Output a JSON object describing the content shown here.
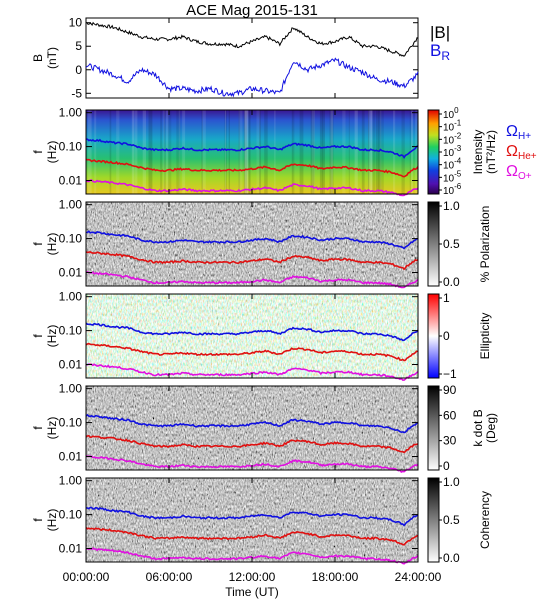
{
  "title": "ACE Mag 2015-131",
  "x_axis": {
    "label": "Time (UT)",
    "ticks": [
      "00:00:00",
      "06:00:00",
      "12:00:00",
      "18:00:00",
      "24:00:00"
    ],
    "range_hours": [
      0,
      24
    ]
  },
  "legend_top": [
    {
      "label": "|B|",
      "color": "#000000"
    },
    {
      "label": "B",
      "sub": "R",
      "color": "#1010e0"
    }
  ],
  "legend_gyro": [
    {
      "label": "Ω",
      "sub": "H+",
      "color": "#1010e0"
    },
    {
      "label": "Ω",
      "sub": "He+",
      "color": "#e01010"
    },
    {
      "label": "Ω",
      "sub": "O+",
      "color": "#e010e0"
    }
  ],
  "freq_axis": {
    "label_top": "f",
    "label_bottom": "(Hz)",
    "ticks": [
      "1.00",
      "0.10",
      "0.01"
    ]
  },
  "panels": [
    {
      "id": "intensity",
      "colorbar_label": "Intensity",
      "colorbar_sublabel": "(nT²/Hz)",
      "colorbar_ticks": [
        "10^0",
        "10^-1",
        "10^-2",
        "10^-3",
        "10^-4",
        "10^-5",
        "10^-6"
      ],
      "scale": "rainbow"
    },
    {
      "id": "polarization",
      "colorbar_label": "% Polarization",
      "colorbar_sublabel": "",
      "colorbar_ticks": [
        "1.0",
        "0.5",
        "0.0"
      ],
      "scale": "gray"
    },
    {
      "id": "ellipticity",
      "colorbar_label": "Ellipticity",
      "colorbar_sublabel": "",
      "colorbar_ticks": [
        "1",
        "0",
        "−1"
      ],
      "scale": "bwr"
    },
    {
      "id": "kdotb",
      "colorbar_label": "k dot B",
      "colorbar_sublabel": "(Deg)",
      "colorbar_ticks": [
        "90",
        "60",
        "30",
        "0"
      ],
      "scale": "gray"
    },
    {
      "id": "coherency",
      "colorbar_label": "Coherency",
      "colorbar_sublabel": "",
      "colorbar_ticks": [
        "1.0",
        "0.5",
        "0.0"
      ],
      "scale": "gray"
    }
  ],
  "chart_data": {
    "type": "line",
    "title": "ACE Mag 2015-131",
    "xlabel": "Time (UT)",
    "ylabel_top": "B (nT)",
    "ylim_top": [
      -6,
      11
    ],
    "yticks_top": [
      "10",
      "5",
      "0",
      "-5"
    ],
    "freq_ylim": [
      0.004,
      1.2
    ],
    "x": [
      0,
      1,
      2,
      3,
      4,
      5,
      6,
      7,
      8,
      9,
      10,
      11,
      12,
      13,
      14,
      15,
      16,
      17,
      18,
      19,
      20,
      21,
      22,
      23,
      24
    ],
    "series": [
      {
        "name": "|B|",
        "color": "#000000",
        "values": [
          10,
          9.5,
          9,
          8,
          7,
          6.5,
          6.5,
          7,
          6,
          5.5,
          5.5,
          5,
          6,
          7,
          5.5,
          9,
          7,
          5.5,
          6,
          7,
          5,
          5,
          4,
          3,
          7
        ]
      },
      {
        "name": "B_R",
        "color": "#1010e0",
        "values": [
          1,
          0,
          -1,
          -2.5,
          0,
          -1,
          -4,
          -4,
          -4.5,
          -4,
          -5,
          -5,
          -4,
          -4.5,
          -5,
          2,
          0,
          1,
          2,
          0.5,
          -0.5,
          -2,
          -2.5,
          -3.5,
          -1
        ]
      },
      {
        "name": "Ω_H+",
        "color": "#1010e0",
        "values": [
          0.16,
          0.15,
          0.13,
          0.12,
          0.09,
          0.08,
          0.08,
          0.09,
          0.08,
          0.08,
          0.08,
          0.08,
          0.09,
          0.1,
          0.08,
          0.12,
          0.11,
          0.09,
          0.1,
          0.1,
          0.08,
          0.08,
          0.07,
          0.05,
          0.1
        ]
      },
      {
        "name": "Ω_He+",
        "color": "#e01010",
        "values": [
          0.04,
          0.037,
          0.034,
          0.03,
          0.024,
          0.02,
          0.02,
          0.022,
          0.02,
          0.02,
          0.02,
          0.02,
          0.022,
          0.025,
          0.02,
          0.03,
          0.028,
          0.022,
          0.025,
          0.024,
          0.02,
          0.02,
          0.018,
          0.013,
          0.025
        ]
      },
      {
        "name": "Ω_O+",
        "color": "#e010e0",
        "values": [
          0.01,
          0.0093,
          0.0085,
          0.0075,
          0.006,
          0.005,
          0.005,
          0.0055,
          0.005,
          0.005,
          0.005,
          0.005,
          0.0055,
          0.006,
          0.005,
          0.0075,
          0.007,
          0.0055,
          0.006,
          0.006,
          0.005,
          0.005,
          0.0045,
          0.0035,
          0.006
        ]
      }
    ]
  }
}
